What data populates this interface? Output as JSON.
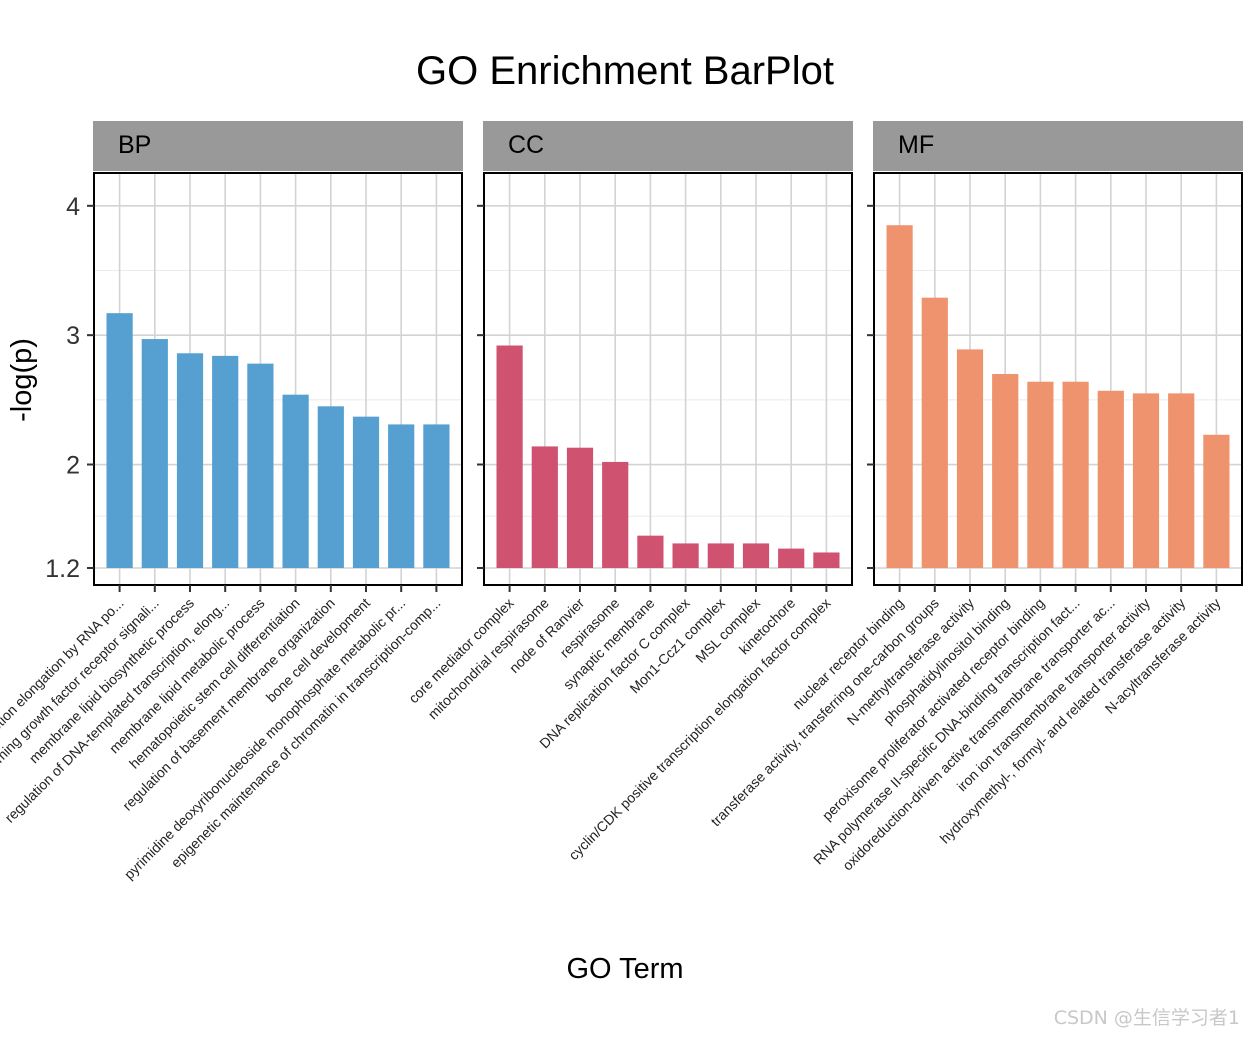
{
  "chart_data": {
    "type": "bar",
    "title": "GO Enrichment BarPlot",
    "xlabel": "GO Term",
    "ylabel": "-log(p)",
    "ylim": [
      1.2,
      4.13
    ],
    "yticks": [
      1.2,
      2,
      3,
      4
    ],
    "grid": true,
    "legend": "none",
    "facets": [
      {
        "name": "BP",
        "color": "#55a0d0",
        "categories": [
          "regulation of transcription elongation by RNA po...",
          "transforming growth factor receptor signali...",
          "membrane lipid biosynthetic process",
          "regulation of DNA-templated transcription, elong...",
          "membrane lipid metabolic process",
          "hematopoietic stem cell differentiation",
          "regulation of basement membrane organization",
          "bone cell development",
          "pyrimidine deoxyribonucleoside monophosphate metabolic pr...",
          "epigenetic maintenance of chromatin in transcription-comp..."
        ],
        "values": [
          3.17,
          2.97,
          2.86,
          2.84,
          2.78,
          2.54,
          2.45,
          2.37,
          2.31,
          2.31
        ]
      },
      {
        "name": "CC",
        "color": "#cf5270",
        "categories": [
          "core mediator complex",
          "mitochondrial respirasome",
          "node of Ranvier",
          "respirasome",
          "synaptic membrane",
          "DNA replication factor C complex",
          "Mon1-Ccz1 complex",
          "MSL complex",
          "kinetochore",
          "cyclin/CDK positive transcription elongation factor complex"
        ],
        "values": [
          2.92,
          2.14,
          2.13,
          2.02,
          1.45,
          1.39,
          1.39,
          1.39,
          1.35,
          1.32
        ]
      },
      {
        "name": "MF",
        "color": "#ef936e",
        "categories": [
          "nuclear receptor binding",
          "transferase activity, transferring one-carbon groups",
          "N-methyltransferase activity",
          "phosphatidylinositol binding",
          "peroxisome proliferator activated receptor binding",
          "RNA polymerase II-specific DNA-binding transcription fact...",
          "oxidoreduction-driven active transmembrane transporter ac...",
          "iron ion transmembrane transporter activity",
          "hydroxymethyl-, formyl- and related transferase activity",
          "N-acyltransferase activity"
        ],
        "values": [
          3.85,
          3.29,
          2.89,
          2.7,
          2.64,
          2.64,
          2.57,
          2.55,
          2.55,
          2.23
        ]
      }
    ]
  },
  "watermark": "CSDN @生信学习者1"
}
